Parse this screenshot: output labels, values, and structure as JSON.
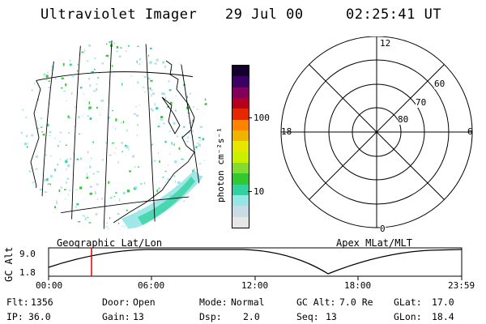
{
  "header": {
    "instrument": "Ultraviolet Imager",
    "date": "29 Jul 00",
    "time": "02:25:41 UT"
  },
  "colorbar": {
    "unit_label": "photon cm⁻²s⁻¹",
    "tick_100": "100",
    "tick_10": "10",
    "colors": [
      "#e6e6e6",
      "#c8dce6",
      "#96e6e6",
      "#32d2a0",
      "#32c832",
      "#82dc32",
      "#c8f000",
      "#e6e600",
      "#f0b400",
      "#ff8200",
      "#e62800",
      "#b4001e",
      "#82005a",
      "#3c0064",
      "#14002d"
    ]
  },
  "polar_plot": {
    "mlt_labels": {
      "top": "12",
      "left": "18",
      "right": "6",
      "bottom": "0"
    },
    "lat_labels": [
      "60",
      "70",
      "80"
    ]
  },
  "geo_label": "Geographic Lat/Lon",
  "apex_label": "Apex MLat/MLT",
  "orbit_plot": {
    "ylabel": "GC Alt",
    "yticks": [
      "9.0",
      "1.8"
    ],
    "xticks": [
      "00:00",
      "06:00",
      "12:00",
      "18:00",
      "23:59"
    ],
    "marker_color": "#e00000"
  },
  "status": {
    "flt_label": "Flt:",
    "flt_value": "1356",
    "door_label": "Door:",
    "door_value": "Open",
    "mode_label": "Mode:",
    "mode_value": "Normal",
    "gcalt_label": "GC Alt:",
    "gcalt_value": "7.0 Re",
    "glat_label": "GLat:",
    "glat_value": "17.0",
    "ip_label": "IP:",
    "ip_value": "36.0",
    "gain_label": "Gain:",
    "gain_value": "13",
    "dsp_label": "Dsp:",
    "dsp_value": "2.0",
    "seq_label": "Seq:",
    "seq_value": "13",
    "glon_label": "GLon:",
    "glon_value": "18.4"
  }
}
